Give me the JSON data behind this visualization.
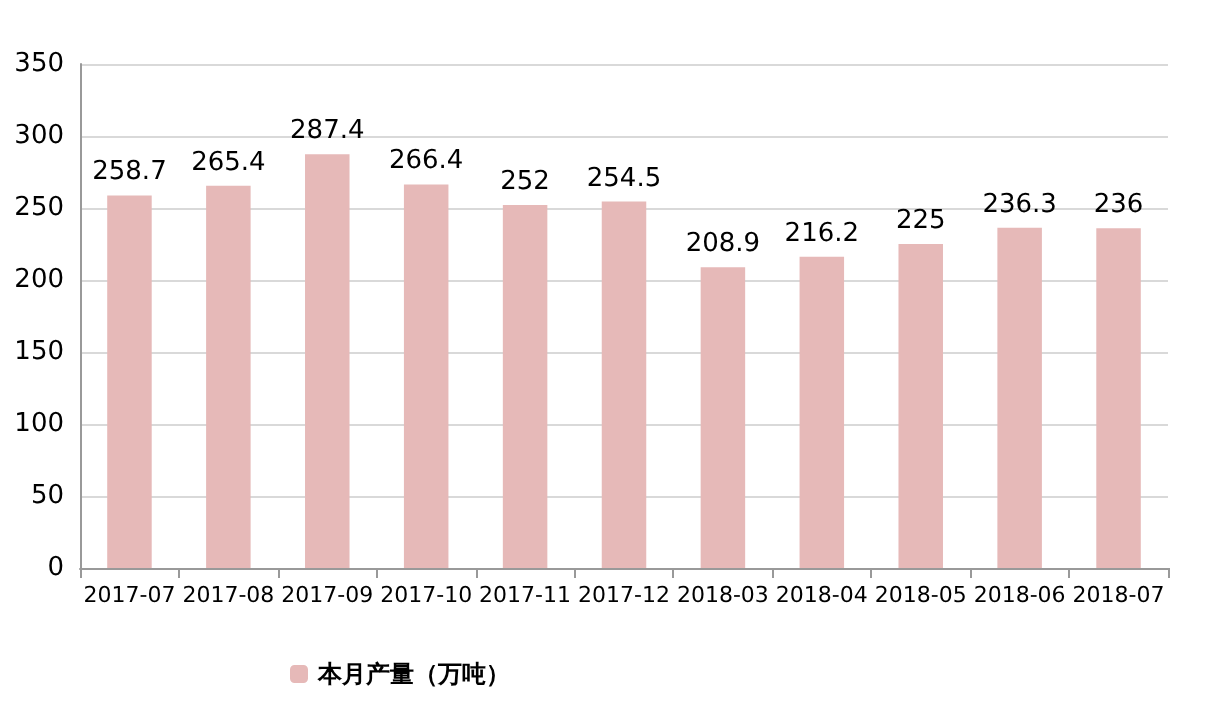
{
  "chart_data": {
    "type": "bar",
    "categories": [
      "2017-07",
      "2017-08",
      "2017-09",
      "2017-10",
      "2017-11",
      "2017-12",
      "2018-03",
      "2018-04",
      "2018-05",
      "2018-06",
      "2018-07"
    ],
    "series": [
      {
        "name": "本月产量（万吨）",
        "color": "#e6b9b8",
        "values": [
          258.7,
          265.4,
          287.4,
          266.4,
          252,
          254.5,
          208.9,
          216.2,
          225,
          236.3,
          236
        ]
      }
    ],
    "ylim": [
      0,
      350
    ],
    "yticks": [
      0,
      50,
      100,
      150,
      200,
      250,
      300,
      350
    ],
    "grid": "y",
    "legend": "bottom left",
    "data_labels": true
  }
}
